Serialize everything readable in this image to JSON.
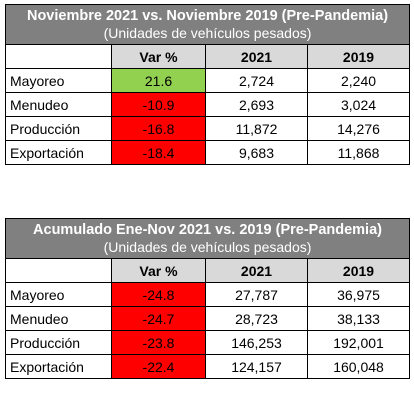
{
  "table1": {
    "title": "Noviembre 2021 vs. Noviembre 2019 (Pre-Pandemia)",
    "subtitle": "(Unidades de vehículos pesados)",
    "headers": [
      "",
      "Var %",
      "2021",
      "2019"
    ],
    "rows": [
      {
        "label": "Mayoreo",
        "var": "21.6",
        "y2021": "2,724",
        "y2019": "2,240",
        "status": "positive"
      },
      {
        "label": "Menudeo",
        "var": "-10.9",
        "y2021": "2,693",
        "y2019": "3,024",
        "status": "negative"
      },
      {
        "label": "Producción",
        "var": "-16.8",
        "y2021": "11,872",
        "y2019": "14,276",
        "status": "negative"
      },
      {
        "label": "Exportación",
        "var": "-18.4",
        "y2021": "9,683",
        "y2019": "11,868",
        "status": "negative"
      }
    ]
  },
  "table2": {
    "title": "Acumulado Ene-Nov 2021 vs. 2019 (Pre-Pandemia)",
    "subtitle": "(Unidades de vehículos pesados)",
    "headers": [
      "",
      "Var %",
      "2021",
      "2019"
    ],
    "rows": [
      {
        "label": "Mayoreo",
        "var": "-24.8",
        "y2021": "27,787",
        "y2019": "36,975",
        "status": "negative"
      },
      {
        "label": "Menudeo",
        "var": "-24.7",
        "y2021": "28,723",
        "y2019": "38,133",
        "status": "negative"
      },
      {
        "label": "Producción",
        "var": "-23.8",
        "y2021": "146,253",
        "y2019": "192,001",
        "status": "negative"
      },
      {
        "label": "Exportación",
        "var": "-22.4",
        "y2021": "124,157",
        "y2019": "160,048",
        "status": "negative"
      }
    ]
  },
  "colors": {
    "header_bg": "#808080",
    "colhdr_bg": "#d9d9d9",
    "positive": "#92d050",
    "negative": "#ff0000"
  }
}
